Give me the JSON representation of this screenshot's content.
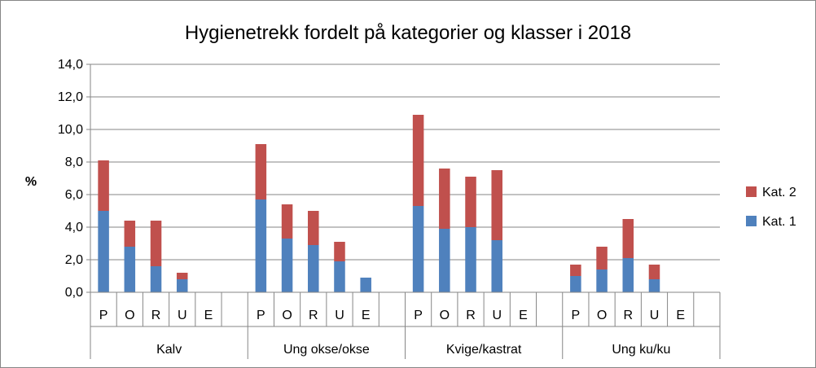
{
  "chart_data": {
    "type": "bar",
    "stacked": true,
    "title": "Hygienetrekk fordelt på kategorier og klasser i 2018",
    "ylabel": "%",
    "xlabel": "",
    "ylim": [
      0,
      14
    ],
    "ytick_step": 2,
    "yticks": [
      "0,0",
      "2,0",
      "4,0",
      "6,0",
      "8,0",
      "10,0",
      "12,0",
      "14,0"
    ],
    "grid": true,
    "legend_position": "right",
    "groups": [
      {
        "label": "Kalv",
        "classes": [
          "P",
          "O",
          "R",
          "U",
          "E"
        ]
      },
      {
        "label": "Ung okse/okse",
        "classes": [
          "P",
          "O",
          "R",
          "U",
          "E"
        ]
      },
      {
        "label": "Kvige/kastrat",
        "classes": [
          "P",
          "O",
          "R",
          "U",
          "E"
        ]
      },
      {
        "label": "Ung ku/ku",
        "classes": [
          "P",
          "O",
          "R",
          "U",
          "E"
        ]
      }
    ],
    "series": [
      {
        "name": "Kat. 1",
        "color": "#4f81bd",
        "values": [
          [
            5.0,
            2.8,
            1.6,
            0.8,
            0.0
          ],
          [
            5.7,
            3.3,
            2.9,
            1.9,
            0.9
          ],
          [
            5.3,
            3.9,
            4.0,
            3.2,
            0.0
          ],
          [
            1.0,
            1.4,
            2.1,
            0.8,
            0.0
          ]
        ]
      },
      {
        "name": "Kat. 2",
        "color": "#c0504d",
        "values": [
          [
            3.1,
            1.6,
            2.8,
            0.4,
            0.0
          ],
          [
            3.4,
            2.1,
            2.1,
            1.2,
            0.0
          ],
          [
            5.6,
            3.7,
            3.1,
            4.3,
            0.0
          ],
          [
            0.7,
            1.4,
            2.4,
            0.9,
            0.0
          ]
        ]
      }
    ],
    "legend_order": [
      "Kat. 2",
      "Kat. 1"
    ]
  },
  "colors": {
    "grid": "#868686",
    "axis": "#868686"
  }
}
